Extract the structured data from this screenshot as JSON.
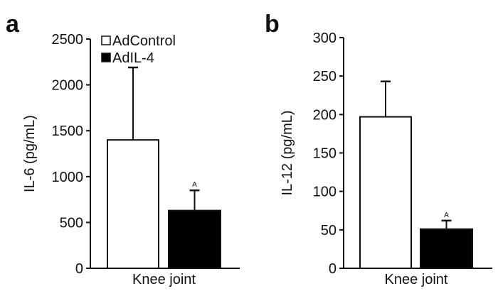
{
  "chart_data": [
    {
      "panel_label": "a",
      "type": "bar",
      "categories": [
        "Knee joint"
      ],
      "xlabel": "Knee joint",
      "ylabel": "IL-6 (pg/mL)",
      "ylim": [
        0,
        2500
      ],
      "yticks": [
        "0",
        "500",
        "1000",
        "1500",
        "2000",
        "2500"
      ],
      "grid": false,
      "legend": "top-left",
      "series": [
        {
          "name": "AdControl",
          "values": [
            1400
          ],
          "error_upper": [
            2190
          ],
          "fill": "#ffffff",
          "annotation": ""
        },
        {
          "name": "AdIL-4",
          "values": [
            630
          ],
          "error_upper": [
            850
          ],
          "fill": "#000000",
          "annotation": "A"
        }
      ]
    },
    {
      "panel_label": "b",
      "type": "bar",
      "categories": [
        "Knee joint"
      ],
      "xlabel": "Knee joint",
      "ylabel": "IL-12 (pg/mL)",
      "ylim": [
        0,
        300
      ],
      "yticks": [
        "0",
        "50",
        "100",
        "150",
        "200",
        "250",
        "300"
      ],
      "grid": false,
      "series": [
        {
          "values": [
            197
          ],
          "error_upper": [
            243
          ],
          "fill": "#ffffff",
          "annotation": ""
        },
        {
          "values": [
            51
          ],
          "error_upper": [
            62
          ],
          "fill": "#000000",
          "annotation": "A"
        }
      ]
    }
  ]
}
